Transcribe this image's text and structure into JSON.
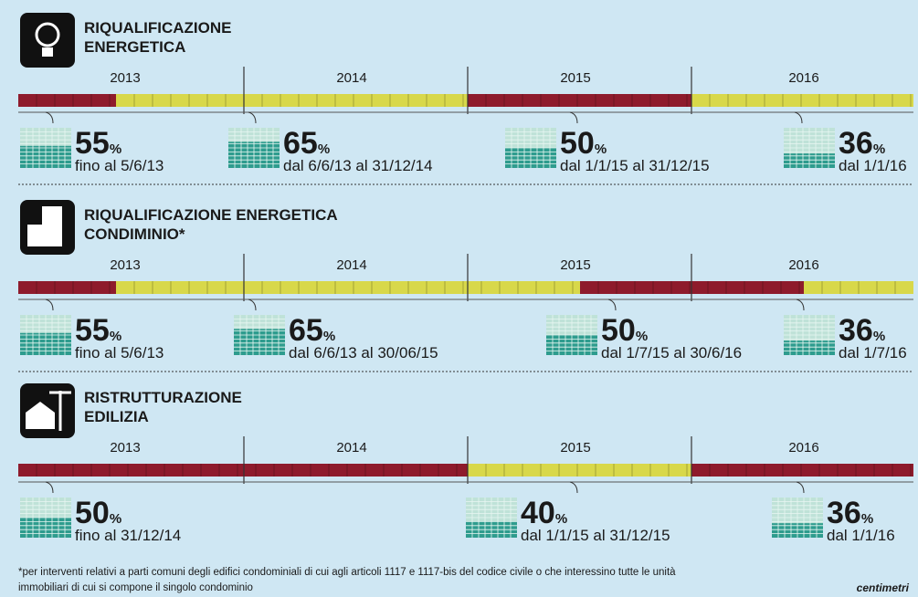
{
  "sections": [
    {
      "title": [
        "RIQUALIFICAZIONE",
        "ENERGETICA"
      ],
      "years": [
        "2013",
        "2014",
        "2015",
        "2016"
      ],
      "segments": [
        {
          "color": "#8e1b2c"
        },
        {
          "color": "#d8d84a"
        },
        {
          "color": "#8e1b2c"
        },
        {
          "color": "#d8d84a"
        }
      ],
      "items": [
        {
          "pct": 55,
          "unit": "%",
          "label": "fino al 5/6/13"
        },
        {
          "pct": 65,
          "unit": "%",
          "label": "dal 6/6/13 al 31/12/14"
        },
        {
          "pct": 50,
          "unit": "%",
          "label": "dal 1/1/15 al 31/12/15"
        },
        {
          "pct": 36,
          "unit": "%",
          "label": "dal 1/1/16"
        }
      ]
    },
    {
      "title": [
        "RIQUALIFICAZIONE ENERGETICA",
        "CONDIMINIO*"
      ],
      "years": [
        "2013",
        "2014",
        "2015",
        "2016"
      ],
      "segments": [
        {
          "color": "#8e1b2c"
        },
        {
          "color": "#d8d84a"
        },
        {
          "color": "#8e1b2c"
        },
        {
          "color": "#d8d84a"
        }
      ],
      "items": [
        {
          "pct": 55,
          "unit": "%",
          "label": "fino al 5/6/13"
        },
        {
          "pct": 65,
          "unit": "%",
          "label": "dal 6/6/13 al 30/06/15"
        },
        {
          "pct": 50,
          "unit": "%",
          "label": "dal 1/7/15 al 30/6/16"
        },
        {
          "pct": 36,
          "unit": "%",
          "label": "dal 1/7/16"
        }
      ]
    },
    {
      "title": [
        "RISTRUTTURAZIONE",
        "EDILIZIA"
      ],
      "years": [
        "2013",
        "2014",
        "2015",
        "2016"
      ],
      "segments": [
        {
          "color": "#8e1b2c"
        },
        {
          "color": "#d8d84a"
        },
        {
          "color": "#8e1b2c"
        }
      ],
      "items": [
        {
          "pct": 50,
          "unit": "%",
          "label": "fino al 31/12/14"
        },
        {
          "pct": 40,
          "unit": "%",
          "label": "dal 1/1/15 al 31/12/15"
        },
        {
          "pct": 36,
          "unit": "%",
          "label": "dal 1/1/16"
        }
      ]
    }
  ],
  "footnote": [
    "*per interventi relativi a parti comuni degli edifici condominiali di cui agli articoli 1117 e 1117-bis del codice civile o che interessino tutte le unità",
    "immobiliari di cui si compone il singolo condominio"
  ],
  "logo": "centimetri"
}
